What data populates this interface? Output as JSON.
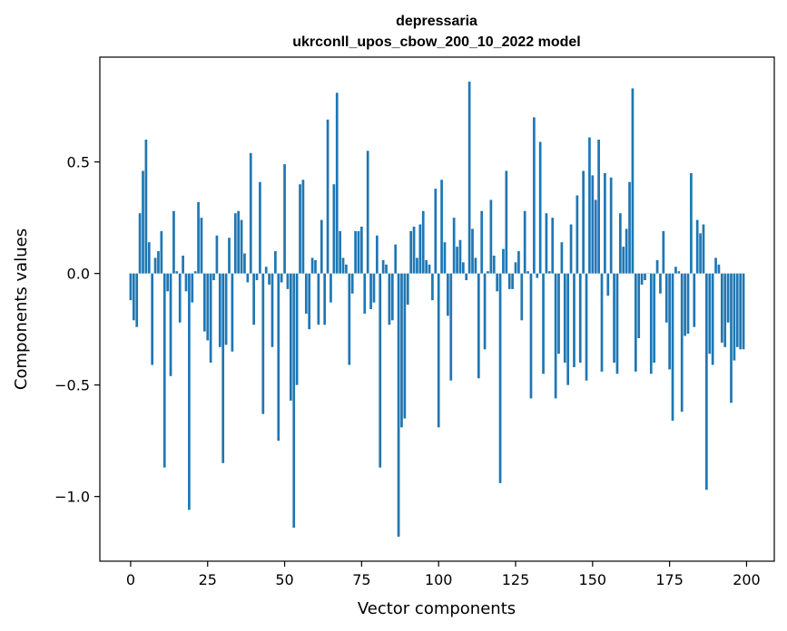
{
  "chart_data": {
    "type": "bar",
    "title_line1": "depressaria",
    "title_line2": "ukrconll_upos_cbow_200_10_2022 model",
    "xlabel": "Vector components",
    "ylabel": "Components values",
    "xlim": [
      -10,
      209
    ],
    "ylim": [
      -1.29,
      0.97
    ],
    "xticks": [
      0,
      25,
      50,
      75,
      100,
      125,
      150,
      175,
      200
    ],
    "xtick_labels": [
      "0",
      "25",
      "50",
      "75",
      "100",
      "125",
      "150",
      "175",
      "200"
    ],
    "yticks": [
      0.5,
      0.0,
      -0.5,
      -1.0
    ],
    "ytick_labels": [
      "0.5",
      "0.0",
      "−0.5",
      "−1.0"
    ],
    "bar_color": "#1f77b4",
    "values": [
      -0.12,
      -0.21,
      -0.24,
      0.27,
      0.46,
      0.6,
      0.14,
      -0.41,
      0.07,
      0.1,
      0.19,
      -0.87,
      -0.08,
      -0.46,
      0.28,
      0.01,
      -0.22,
      0.08,
      -0.08,
      -1.06,
      -0.13,
      0.01,
      0.32,
      0.25,
      -0.26,
      -0.3,
      -0.4,
      -0.03,
      0.17,
      -0.33,
      -0.85,
      -0.32,
      0.16,
      -0.35,
      0.27,
      0.28,
      0.24,
      0.09,
      -0.04,
      0.54,
      -0.23,
      -0.03,
      0.41,
      -0.63,
      0.03,
      -0.05,
      -0.33,
      0.1,
      -0.75,
      -0.04,
      0.49,
      -0.07,
      -0.57,
      -1.14,
      -0.5,
      0.4,
      0.42,
      -0.18,
      -0.25,
      0.07,
      0.06,
      -0.23,
      0.24,
      -0.23,
      0.69,
      -0.13,
      0.4,
      0.81,
      0.19,
      0.07,
      0.04,
      -0.41,
      -0.09,
      0.19,
      0.19,
      0.21,
      -0.18,
      0.55,
      -0.16,
      -0.13,
      0.17,
      -0.87,
      0.06,
      0.04,
      -0.23,
      -0.21,
      0.13,
      -1.18,
      -0.69,
      -0.65,
      -0.14,
      0.19,
      0.21,
      0.07,
      0.22,
      0.28,
      0.06,
      0.04,
      -0.12,
      0.38,
      -0.69,
      0.42,
      0.14,
      -0.19,
      -0.48,
      0.25,
      0.12,
      0.15,
      0.05,
      -0.03,
      0.86,
      0.2,
      0.07,
      -0.47,
      0.28,
      -0.34,
      0.01,
      0.33,
      0.08,
      -0.08,
      -0.94,
      0.11,
      0.46,
      -0.07,
      -0.07,
      0.05,
      0.1,
      -0.21,
      0.28,
      0.01,
      -0.56,
      0.7,
      -0.02,
      0.59,
      -0.45,
      0.27,
      0.01,
      0.25,
      -0.56,
      -0.36,
      0.14,
      -0.4,
      -0.5,
      0.22,
      -0.42,
      0.35,
      -0.4,
      0.46,
      -0.48,
      0.61,
      0.44,
      0.33,
      0.6,
      -0.44,
      0.45,
      -0.1,
      0.43,
      -0.4,
      -0.45,
      0.27,
      0.12,
      0.2,
      0.41,
      0.83,
      -0.44,
      -0.29,
      -0.05,
      -0.03,
      0.0,
      -0.45,
      -0.4,
      0.06,
      -0.09,
      0.19,
      -0.22,
      -0.43,
      -0.66,
      0.03,
      0.01,
      -0.62,
      -0.28,
      -0.27,
      0.45,
      -0.24,
      0.24,
      0.18,
      0.22,
      -0.97,
      -0.36,
      -0.41,
      0.07,
      0.04,
      -0.31,
      -0.33,
      -0.22,
      -0.58,
      -0.39,
      -0.33,
      -0.34,
      -0.34
    ]
  }
}
